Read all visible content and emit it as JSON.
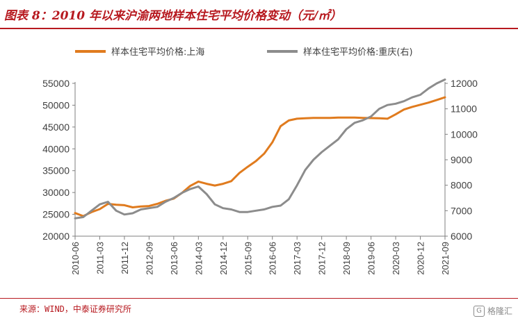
{
  "header": {
    "title": "图表 8：2010 年以来沪渝两地样本住宅平均价格变动（元/㎡）"
  },
  "footer": {
    "source": "来源：WIND，中泰证券研究所",
    "watermark": "格隆汇"
  },
  "colors": {
    "accent": "#b7191f",
    "shanghai": "#e07b1e",
    "chongqing": "#8c8c8c"
  },
  "chart_data": {
    "type": "line",
    "title": "",
    "xlabel": "",
    "ylabel": "",
    "y2label": "",
    "ylim": [
      20000,
      55000
    ],
    "y2lim": [
      6000,
      12000
    ],
    "yticks": [
      "55000",
      "50000",
      "45000",
      "40000",
      "35000",
      "30000",
      "25000",
      "20000"
    ],
    "y2ticks": [
      "12000",
      "11000",
      "10000",
      "9000",
      "8000",
      "7000",
      "6000"
    ],
    "xticks": [
      "2010-06",
      "2011-03",
      "2011-12",
      "2012-09",
      "2013-06",
      "2014-03",
      "2014-12",
      "2015-09",
      "2016-06",
      "2017-03",
      "2017-12",
      "2018-09",
      "2019-06",
      "2020-03",
      "2020-12",
      "2021-09"
    ],
    "legend_position": "top",
    "series": [
      {
        "name": "样本住宅平均价格:上海",
        "axis": "left",
        "color": "#e07b1e",
        "x": [
          "2010-06",
          "2010-09",
          "2010-12",
          "2011-03",
          "2011-06",
          "2011-09",
          "2011-12",
          "2012-03",
          "2012-06",
          "2012-09",
          "2012-12",
          "2013-03",
          "2013-06",
          "2013-09",
          "2013-12",
          "2014-03",
          "2014-06",
          "2014-09",
          "2014-12",
          "2015-03",
          "2015-06",
          "2015-09",
          "2015-12",
          "2016-03",
          "2016-06",
          "2016-09",
          "2016-12",
          "2017-03",
          "2017-06",
          "2017-09",
          "2017-12",
          "2018-03",
          "2018-06",
          "2018-09",
          "2018-12",
          "2019-03",
          "2019-06",
          "2019-09",
          "2019-12",
          "2020-03",
          "2020-06",
          "2020-09",
          "2020-12",
          "2021-03",
          "2021-06",
          "2021-09"
        ],
        "values": [
          25300,
          24600,
          25500,
          26200,
          27400,
          27200,
          27100,
          26600,
          26800,
          26900,
          27400,
          28100,
          28600,
          29900,
          31500,
          32500,
          32000,
          31600,
          32000,
          32600,
          34500,
          35900,
          37200,
          38900,
          41500,
          45200,
          46500,
          46900,
          47000,
          47100,
          47100,
          47100,
          47150,
          47150,
          47150,
          47100,
          47050,
          47000,
          46900,
          47900,
          49000,
          49600,
          50100,
          50600,
          51200,
          51800
        ]
      },
      {
        "name": "样本住宅平均价格:重庆(右)",
        "axis": "right",
        "color": "#8c8c8c",
        "x": [
          "2010-06",
          "2010-09",
          "2010-12",
          "2011-03",
          "2011-06",
          "2011-09",
          "2011-12",
          "2012-03",
          "2012-06",
          "2012-09",
          "2012-12",
          "2013-03",
          "2013-06",
          "2013-09",
          "2013-12",
          "2014-03",
          "2014-06",
          "2014-09",
          "2014-12",
          "2015-03",
          "2015-06",
          "2015-09",
          "2015-12",
          "2016-03",
          "2016-06",
          "2016-09",
          "2016-12",
          "2017-03",
          "2017-06",
          "2017-09",
          "2017-12",
          "2018-03",
          "2018-06",
          "2018-09",
          "2018-12",
          "2019-03",
          "2019-06",
          "2019-09",
          "2019-12",
          "2020-03",
          "2020-06",
          "2020-09",
          "2020-12",
          "2021-03",
          "2021-06",
          "2021-09"
        ],
        "values": [
          6700,
          6750,
          7000,
          7250,
          7350,
          7000,
          6850,
          6900,
          7050,
          7100,
          7150,
          7350,
          7500,
          7700,
          7850,
          7950,
          7650,
          7250,
          7100,
          7050,
          6950,
          6950,
          7000,
          7050,
          7150,
          7200,
          7450,
          8000,
          8600,
          9000,
          9300,
          9550,
          9800,
          10200,
          10450,
          10550,
          10700,
          11000,
          11150,
          11200,
          11300,
          11450,
          11550,
          11800,
          12000,
          12150
        ]
      }
    ]
  }
}
